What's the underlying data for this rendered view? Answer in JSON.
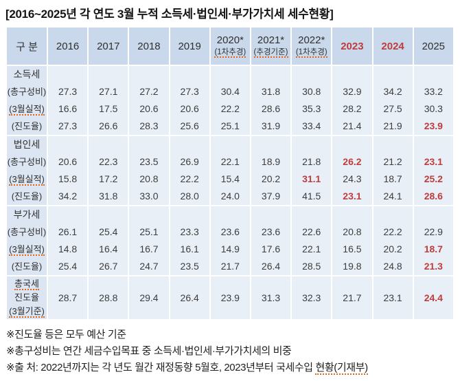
{
  "title": "[2016~2025년 각 연도 3월 누적 소득세·법인세·부가가치세 세수현황]",
  "colors": {
    "header_bg": "#c9d8ea",
    "label_bg": "#dce6f2",
    "cell_bg": "#e9eff7",
    "red": "#be3c3c",
    "text": "#3c3c3c",
    "squiggle": "#e0661e"
  },
  "table": {
    "corner_label": "구 분",
    "columns": [
      {
        "id": "2016",
        "year": "2016",
        "sub": "",
        "red": false,
        "sub_squiggle": false
      },
      {
        "id": "2017",
        "year": "2017",
        "sub": "",
        "red": false,
        "sub_squiggle": false
      },
      {
        "id": "2018",
        "year": "2018",
        "sub": "",
        "red": false,
        "sub_squiggle": false
      },
      {
        "id": "2019",
        "year": "2019",
        "sub": "",
        "red": false,
        "sub_squiggle": false
      },
      {
        "id": "2020",
        "year": "2020*",
        "sub": "(1차추경)",
        "red": false,
        "sub_squiggle": true
      },
      {
        "id": "2021",
        "year": "2021*",
        "sub": "(추경기준)",
        "red": false,
        "sub_squiggle": true
      },
      {
        "id": "2022",
        "year": "2022*",
        "sub": "(1차추경)",
        "red": false,
        "sub_squiggle": true
      },
      {
        "id": "2023",
        "year": "2023",
        "sub": "",
        "red": true,
        "sub_squiggle": false
      },
      {
        "id": "2024",
        "year": "2024",
        "sub": "",
        "red": true,
        "sub_squiggle": false
      },
      {
        "id": "2025",
        "year": "2025",
        "sub": "",
        "red": false,
        "sub_squiggle": false
      }
    ],
    "sections": [
      {
        "id": "income-tax",
        "name": "소득세",
        "name_squiggle": false,
        "rows": [
          {
            "label": "(총구성비)",
            "squiggle": false,
            "values": [
              "27.3",
              "27.1",
              "27.2",
              "27.3",
              "30.4",
              "31.8",
              "30.8",
              "32.9",
              "34.2",
              "33.2"
            ],
            "red": []
          },
          {
            "label": "(3월실적)",
            "squiggle": true,
            "values": [
              "16.6",
              "17.5",
              "20.6",
              "20.6",
              "22.2",
              "28.6",
              "35.3",
              "28.2",
              "27.5",
              "30.3"
            ],
            "red": []
          },
          {
            "label": "(진도율)",
            "squiggle": false,
            "values": [
              "27.3",
              "26.6",
              "28.3",
              "25.6",
              "25.1",
              "31.9",
              "33.4",
              "21.4",
              "21.9",
              "23.9"
            ],
            "red": [
              9
            ]
          }
        ]
      },
      {
        "id": "corporate-tax",
        "name": "법인세",
        "name_squiggle": false,
        "rows": [
          {
            "label": "(총구성비)",
            "squiggle": false,
            "values": [
              "20.6",
              "22.3",
              "23.5",
              "26.9",
              "22.1",
              "18.9",
              "21.8",
              "26.2",
              "21.2",
              "23.1"
            ],
            "red": [
              7,
              9
            ]
          },
          {
            "label": "(3월실적)",
            "squiggle": true,
            "values": [
              "15.8",
              "17.2",
              "20.8",
              "22.2",
              "15.4",
              "20.2",
              "31.1",
              "24.3",
              "18.7",
              "25.2"
            ],
            "red": [
              6,
              9
            ]
          },
          {
            "label": "(진도율)",
            "squiggle": false,
            "values": [
              "34.2",
              "31.8",
              "33.0",
              "28.0",
              "24.0",
              "37.9",
              "41.5",
              "23.1",
              "24.1",
              "28.6"
            ],
            "red": [
              7,
              9
            ]
          }
        ]
      },
      {
        "id": "vat",
        "name": "부가세",
        "name_squiggle": false,
        "rows": [
          {
            "label": "(총구성비)",
            "squiggle": false,
            "values": [
              "26.1",
              "25.4",
              "25.1",
              "23.3",
              "23.6",
              "23.6",
              "22.6",
              "20.8",
              "22.2",
              "22.9"
            ],
            "red": []
          },
          {
            "label": "(3월실적)",
            "squiggle": true,
            "values": [
              "14.8",
              "16.4",
              "16.7",
              "16.1",
              "14.9",
              "17.6",
              "22.1",
              "16.5",
              "20.2",
              "18.7"
            ],
            "red": [
              9
            ]
          },
          {
            "label": "(진도율)",
            "squiggle": false,
            "values": [
              "25.4",
              "26.7",
              "24.7",
              "23.5",
              "21.7",
              "26.4",
              "28.5",
              "19.8",
              "24.8",
              "21.3"
            ],
            "red": [
              9
            ]
          }
        ]
      }
    ],
    "summary": {
      "id": "total-national-tax",
      "label_lines": [
        {
          "text": "총국세",
          "squiggle": true
        },
        {
          "text": "진도율",
          "squiggle": false
        },
        {
          "text": "(3월기준)",
          "squiggle": true
        }
      ],
      "values": [
        "28.7",
        "28.8",
        "29.4",
        "26.4",
        "23.9",
        "31.3",
        "32.3",
        "21.7",
        "23.1",
        "24.4"
      ],
      "red": [
        9
      ]
    }
  },
  "footnotes": [
    {
      "parts": [
        {
          "text": "※진도율 등은 모두 예산 기준",
          "squiggle": false
        }
      ]
    },
    {
      "parts": [
        {
          "text": "※총구성비는 연간 세금수입목표 중 소득세·법인세·부가가치세의 비중",
          "squiggle": false
        }
      ]
    },
    {
      "parts": [
        {
          "text": "※출  처: 2022년까지는 각 년도 월간 재정동향 5월호, 2023년부터 국세수입 ",
          "squiggle": false
        },
        {
          "text": "현황(기재부)",
          "squiggle": true
        }
      ]
    }
  ]
}
